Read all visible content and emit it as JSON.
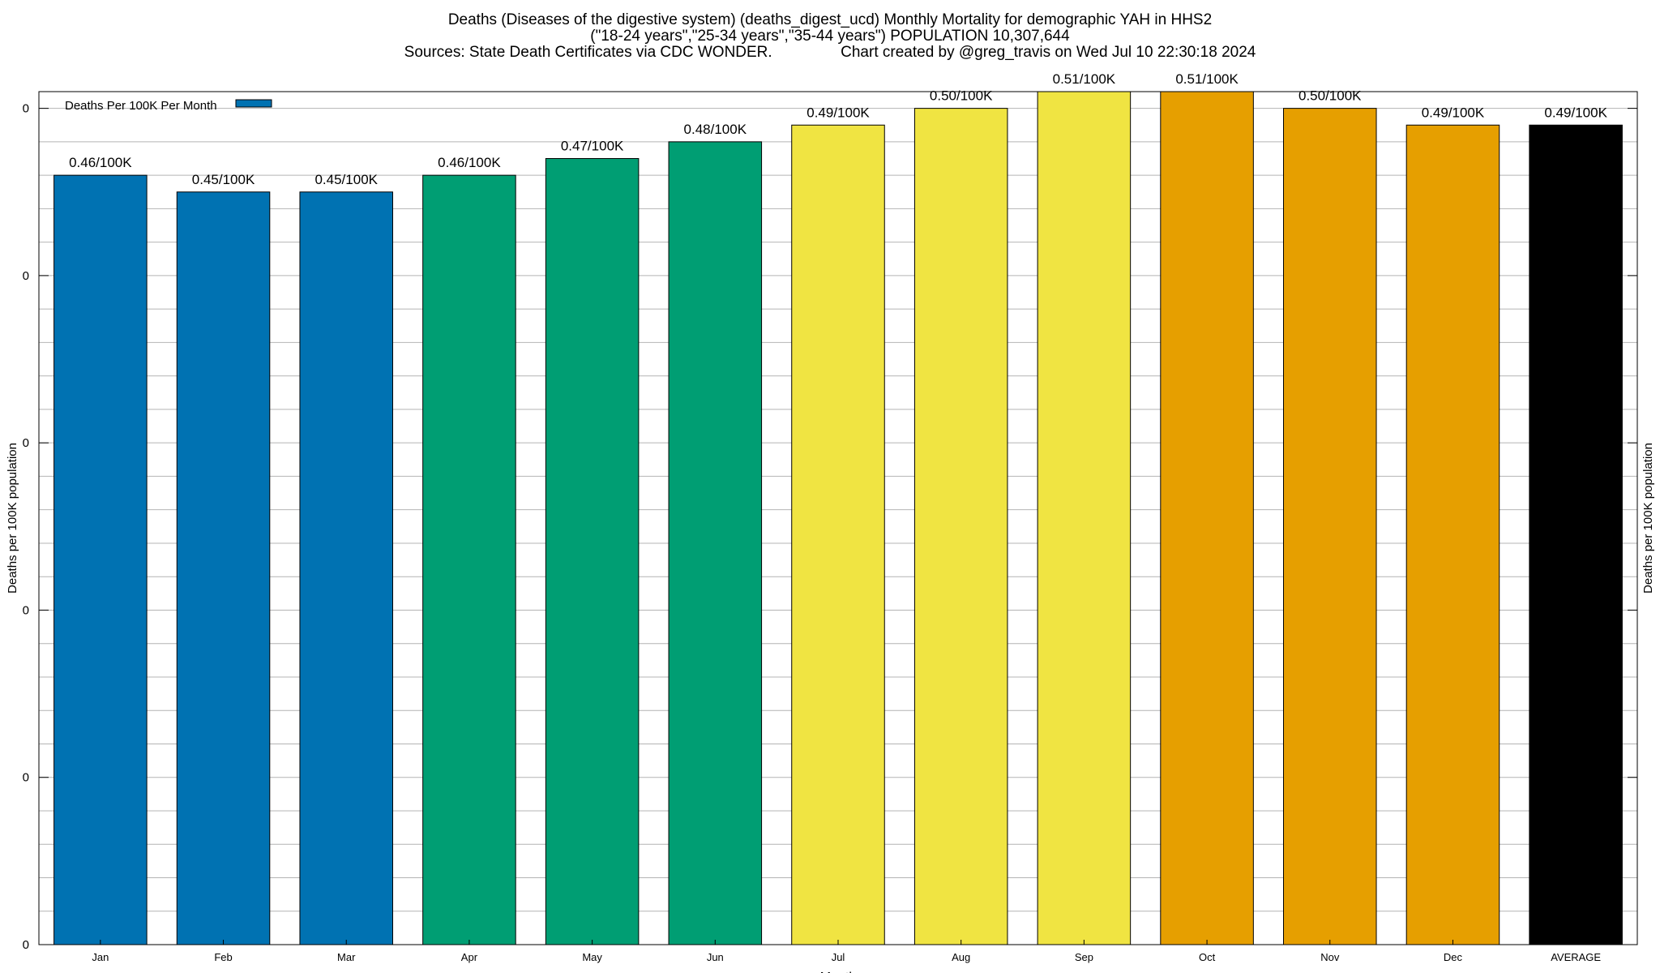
{
  "title": {
    "line1": "Deaths (Diseases of the digestive system) (deaths_digest_ucd) Monthly Mortality for demographic YAH in HHS2",
    "line2": "(\"18-24 years\",\"25-34 years\",\"35-44 years\") POPULATION 10,307,644",
    "line3": "Sources: State Death Certificates via CDC WONDER.                Chart created by @greg_travis on Wed Jul 10 22:30:18 2024"
  },
  "chart_data": {
    "type": "bar",
    "categories": [
      "Jan",
      "Feb",
      "Mar",
      "Apr",
      "May",
      "Jun",
      "Jul",
      "Aug",
      "Sep",
      "Oct",
      "Nov",
      "Dec",
      "AVERAGE"
    ],
    "values": [
      0.46,
      0.45,
      0.45,
      0.46,
      0.47,
      0.48,
      0.49,
      0.5,
      0.51,
      0.51,
      0.5,
      0.49,
      0.49
    ],
    "data_labels": [
      "0.46/100K",
      "0.45/100K",
      "0.45/100K",
      "0.46/100K",
      "0.47/100K",
      "0.48/100K",
      "0.49/100K",
      "0.50/100K",
      "0.51/100K",
      "0.51/100K",
      "0.50/100K",
      "0.49/100K",
      "0.49/100K"
    ],
    "bar_colors": [
      "#0072b2",
      "#0072b2",
      "#0072b2",
      "#009e73",
      "#009e73",
      "#009e73",
      "#f0e442",
      "#f0e442",
      "#f0e442",
      "#e69f00",
      "#e69f00",
      "#e69f00",
      "#000000"
    ],
    "xlabel": "Month",
    "ylabel": "Deaths per 100K population",
    "y2label": "Deaths per 100K population",
    "ylim": [
      0,
      0.51
    ],
    "yticks": [
      0,
      0.1,
      0.2,
      0.3,
      0.4,
      0.5
    ],
    "ytick_labels": [
      "0",
      "0",
      "0",
      "0",
      "0",
      "0"
    ],
    "grid": true,
    "legend": {
      "position": "top-left",
      "entries": [
        {
          "name": "Deaths Per 100K Per Month",
          "color": "#0072b2"
        }
      ]
    }
  }
}
